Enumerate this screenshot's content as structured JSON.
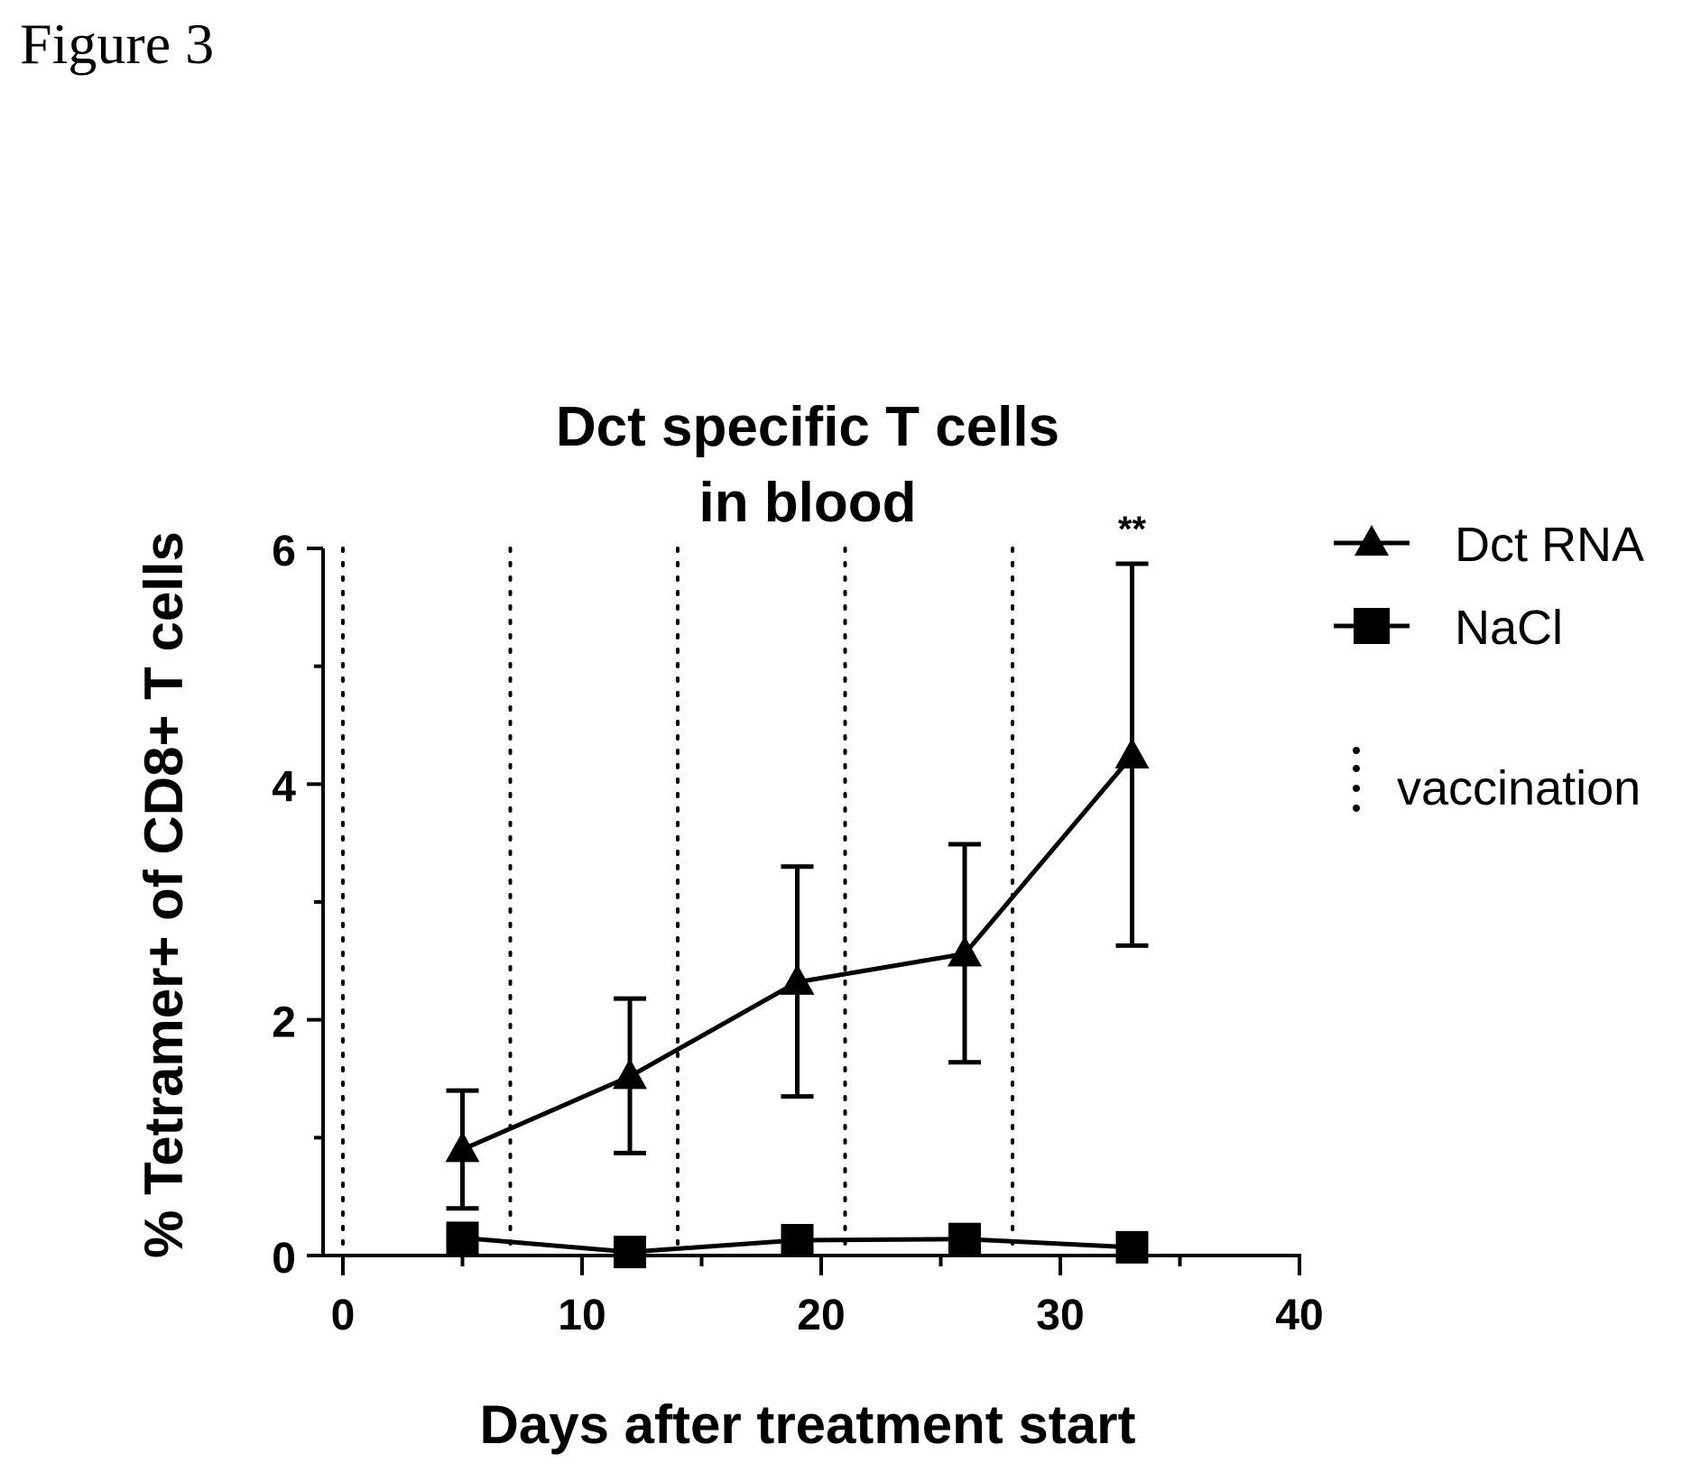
{
  "figure_label": "Figure 3",
  "chart_data": {
    "type": "line",
    "title_line1": "Dct specific T cells",
    "title_line2": "in blood",
    "xlabel": "Days after treatment start",
    "ylabel": "% Tetramer+ of CD8+ T cells",
    "xlim": [
      0,
      40
    ],
    "ylim": [
      0,
      6
    ],
    "xticks": [
      "0",
      "10",
      "20",
      "30",
      "40"
    ],
    "yticks": [
      "0",
      "2",
      "4",
      "6"
    ],
    "grid": false,
    "legend_position": "right",
    "series": [
      {
        "name": "Dct RNA",
        "marker": "triangle",
        "x": [
          5,
          12,
          19,
          26,
          33
        ],
        "y": [
          0.9,
          1.52,
          2.32,
          2.56,
          4.24
        ],
        "err_low": [
          0.4,
          0.87,
          1.35,
          1.64,
          2.63
        ],
        "err_high": [
          1.4,
          2.18,
          3.3,
          3.49,
          5.87
        ]
      },
      {
        "name": "NaCl",
        "marker": "square",
        "x": [
          5,
          12,
          19,
          26,
          33
        ],
        "y": [
          0.15,
          0.03,
          0.13,
          0.14,
          0.07
        ]
      }
    ],
    "vaccination_days": [
      0,
      7,
      14,
      21,
      28
    ],
    "vaccination_label": "vaccination",
    "annotations": [
      {
        "text": "**",
        "x": 33
      }
    ],
    "colors": {
      "line": "#000000",
      "background": "#ffffff"
    }
  }
}
